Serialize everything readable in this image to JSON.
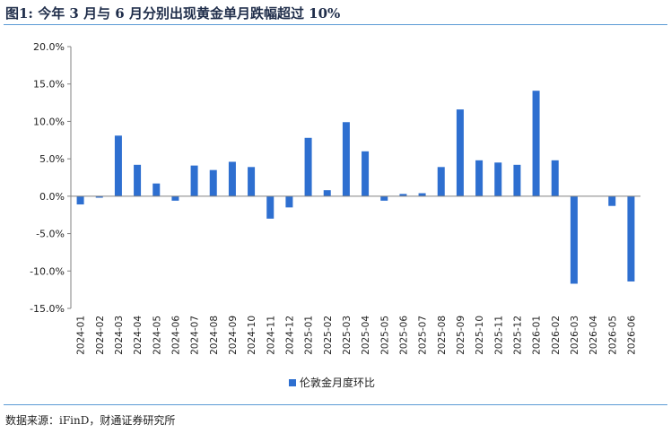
{
  "header": {
    "title": "图1: 今年 3 月与 6 月分别出现黄金单月跌幅超过 10%"
  },
  "footer": {
    "source": "数据来源：iFinD，财通证券研究所"
  },
  "colors": {
    "bar": "#2e6fd0",
    "rule": "#5b9bd5",
    "axis": "#808080"
  },
  "chart_data": {
    "type": "bar",
    "categories": [
      "2024-01",
      "2024-02",
      "2024-03",
      "2024-04",
      "2024-05",
      "2024-06",
      "2024-07",
      "2024-08",
      "2024-09",
      "2024-10",
      "2024-11",
      "2024-12",
      "2025-01",
      "2025-02",
      "2025-03",
      "2025-04",
      "2025-05",
      "2025-06",
      "2025-07",
      "2025-08",
      "2025-09",
      "2025-10",
      "2025-11",
      "2025-12",
      "2026-01",
      "2026-02",
      "2026-03",
      "2026-04",
      "2026-05",
      "2026-06"
    ],
    "series": [
      {
        "name": "伦敦金月度环比",
        "values": [
          -1.1,
          -0.2,
          8.1,
          4.2,
          1.7,
          -0.6,
          4.1,
          3.5,
          4.6,
          3.9,
          -3.0,
          -1.5,
          7.8,
          0.8,
          9.9,
          6.0,
          -0.6,
          0.3,
          0.4,
          3.9,
          11.6,
          4.8,
          4.5,
          4.2,
          14.1,
          4.8,
          -11.7,
          0.0,
          -1.3,
          -11.4
        ]
      }
    ],
    "yticks": [
      "20.0%",
      "15.0%",
      "10.0%",
      "5.0%",
      "0.0%",
      "-5.0%",
      "-10.0%",
      "-15.0%"
    ],
    "ylim": [
      -15,
      20
    ],
    "xlabel": "",
    "ylabel": "",
    "grid": false,
    "legend": "bottom-center"
  }
}
